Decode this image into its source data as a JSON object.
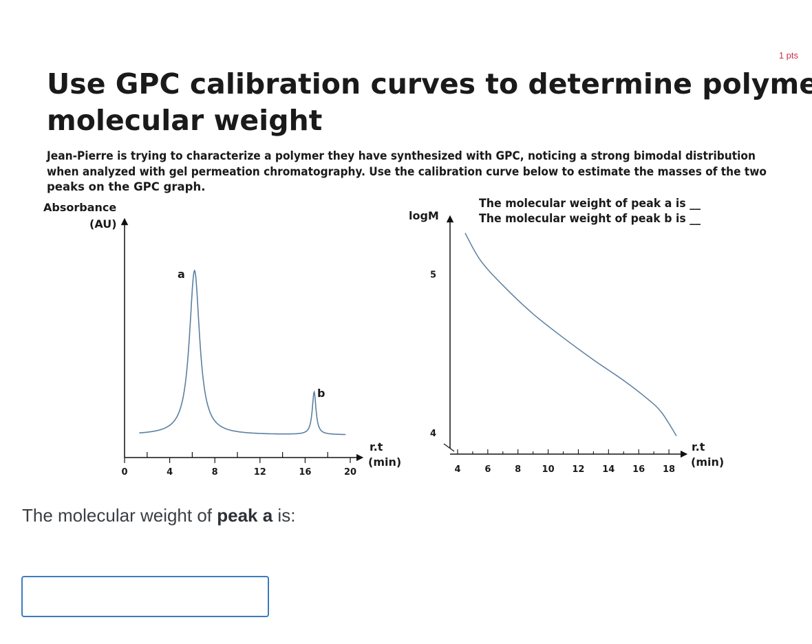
{
  "points": "1 pts",
  "figure": {
    "title_line1": "Use GPC calibration curves to determine polymer",
    "title_line2": "molecular weight",
    "desc_line1": "Jean-Pierre is trying to characterize a polymer they have synthesized with GPC, noticing a strong bimodal distribution",
    "desc_line2": "when analyzed with gel permeation chromatography. Use the calibration curve below to estimate the masses of the two",
    "desc_line3": "peaks on the GPC graph.",
    "blank_a": "The molecular weight of peak a is __",
    "blank_b": "The molecular weight of peak b is __"
  },
  "chart_data": [
    {
      "type": "line",
      "ylabel_line1": "Absorbance",
      "ylabel_line2": "(AU)",
      "xlabel_line1": "r.t",
      "xlabel_line2": "(min)",
      "x_tick_labels": [
        "0",
        "4",
        "8",
        "12",
        "16",
        "20"
      ],
      "xlim": [
        0,
        20
      ],
      "peak_labels": [
        "a",
        "b"
      ],
      "peaks": [
        {
          "label": "a",
          "retention_time": 6.2,
          "height": 1.0
        },
        {
          "label": "b",
          "retention_time": 16.8,
          "height": 0.26
        }
      ],
      "baseline": 0.02
    },
    {
      "type": "line",
      "ylabel": "logM",
      "xlabel_line1": "r.t",
      "xlabel_line2": "(min)",
      "y_tick_labels": [
        "5",
        "4"
      ],
      "x_tick_labels": [
        "4",
        "6",
        "8",
        "10",
        "12",
        "14",
        "16",
        "18"
      ],
      "xlim": [
        3.5,
        19
      ],
      "ylim": [
        3.9,
        5.35
      ],
      "series": [
        {
          "x": [
            4.5,
            5.5,
            7,
            9,
            11,
            13,
            15,
            16.5,
            17.5,
            18.5
          ],
          "y": [
            5.26,
            5.09,
            4.93,
            4.75,
            4.6,
            4.46,
            4.33,
            4.22,
            4.13,
            3.98
          ]
        }
      ]
    }
  ],
  "question": {
    "prefix": "The molecular weight of ",
    "bold": "peak a",
    "suffix": " is:"
  },
  "answer": {
    "value": ""
  }
}
